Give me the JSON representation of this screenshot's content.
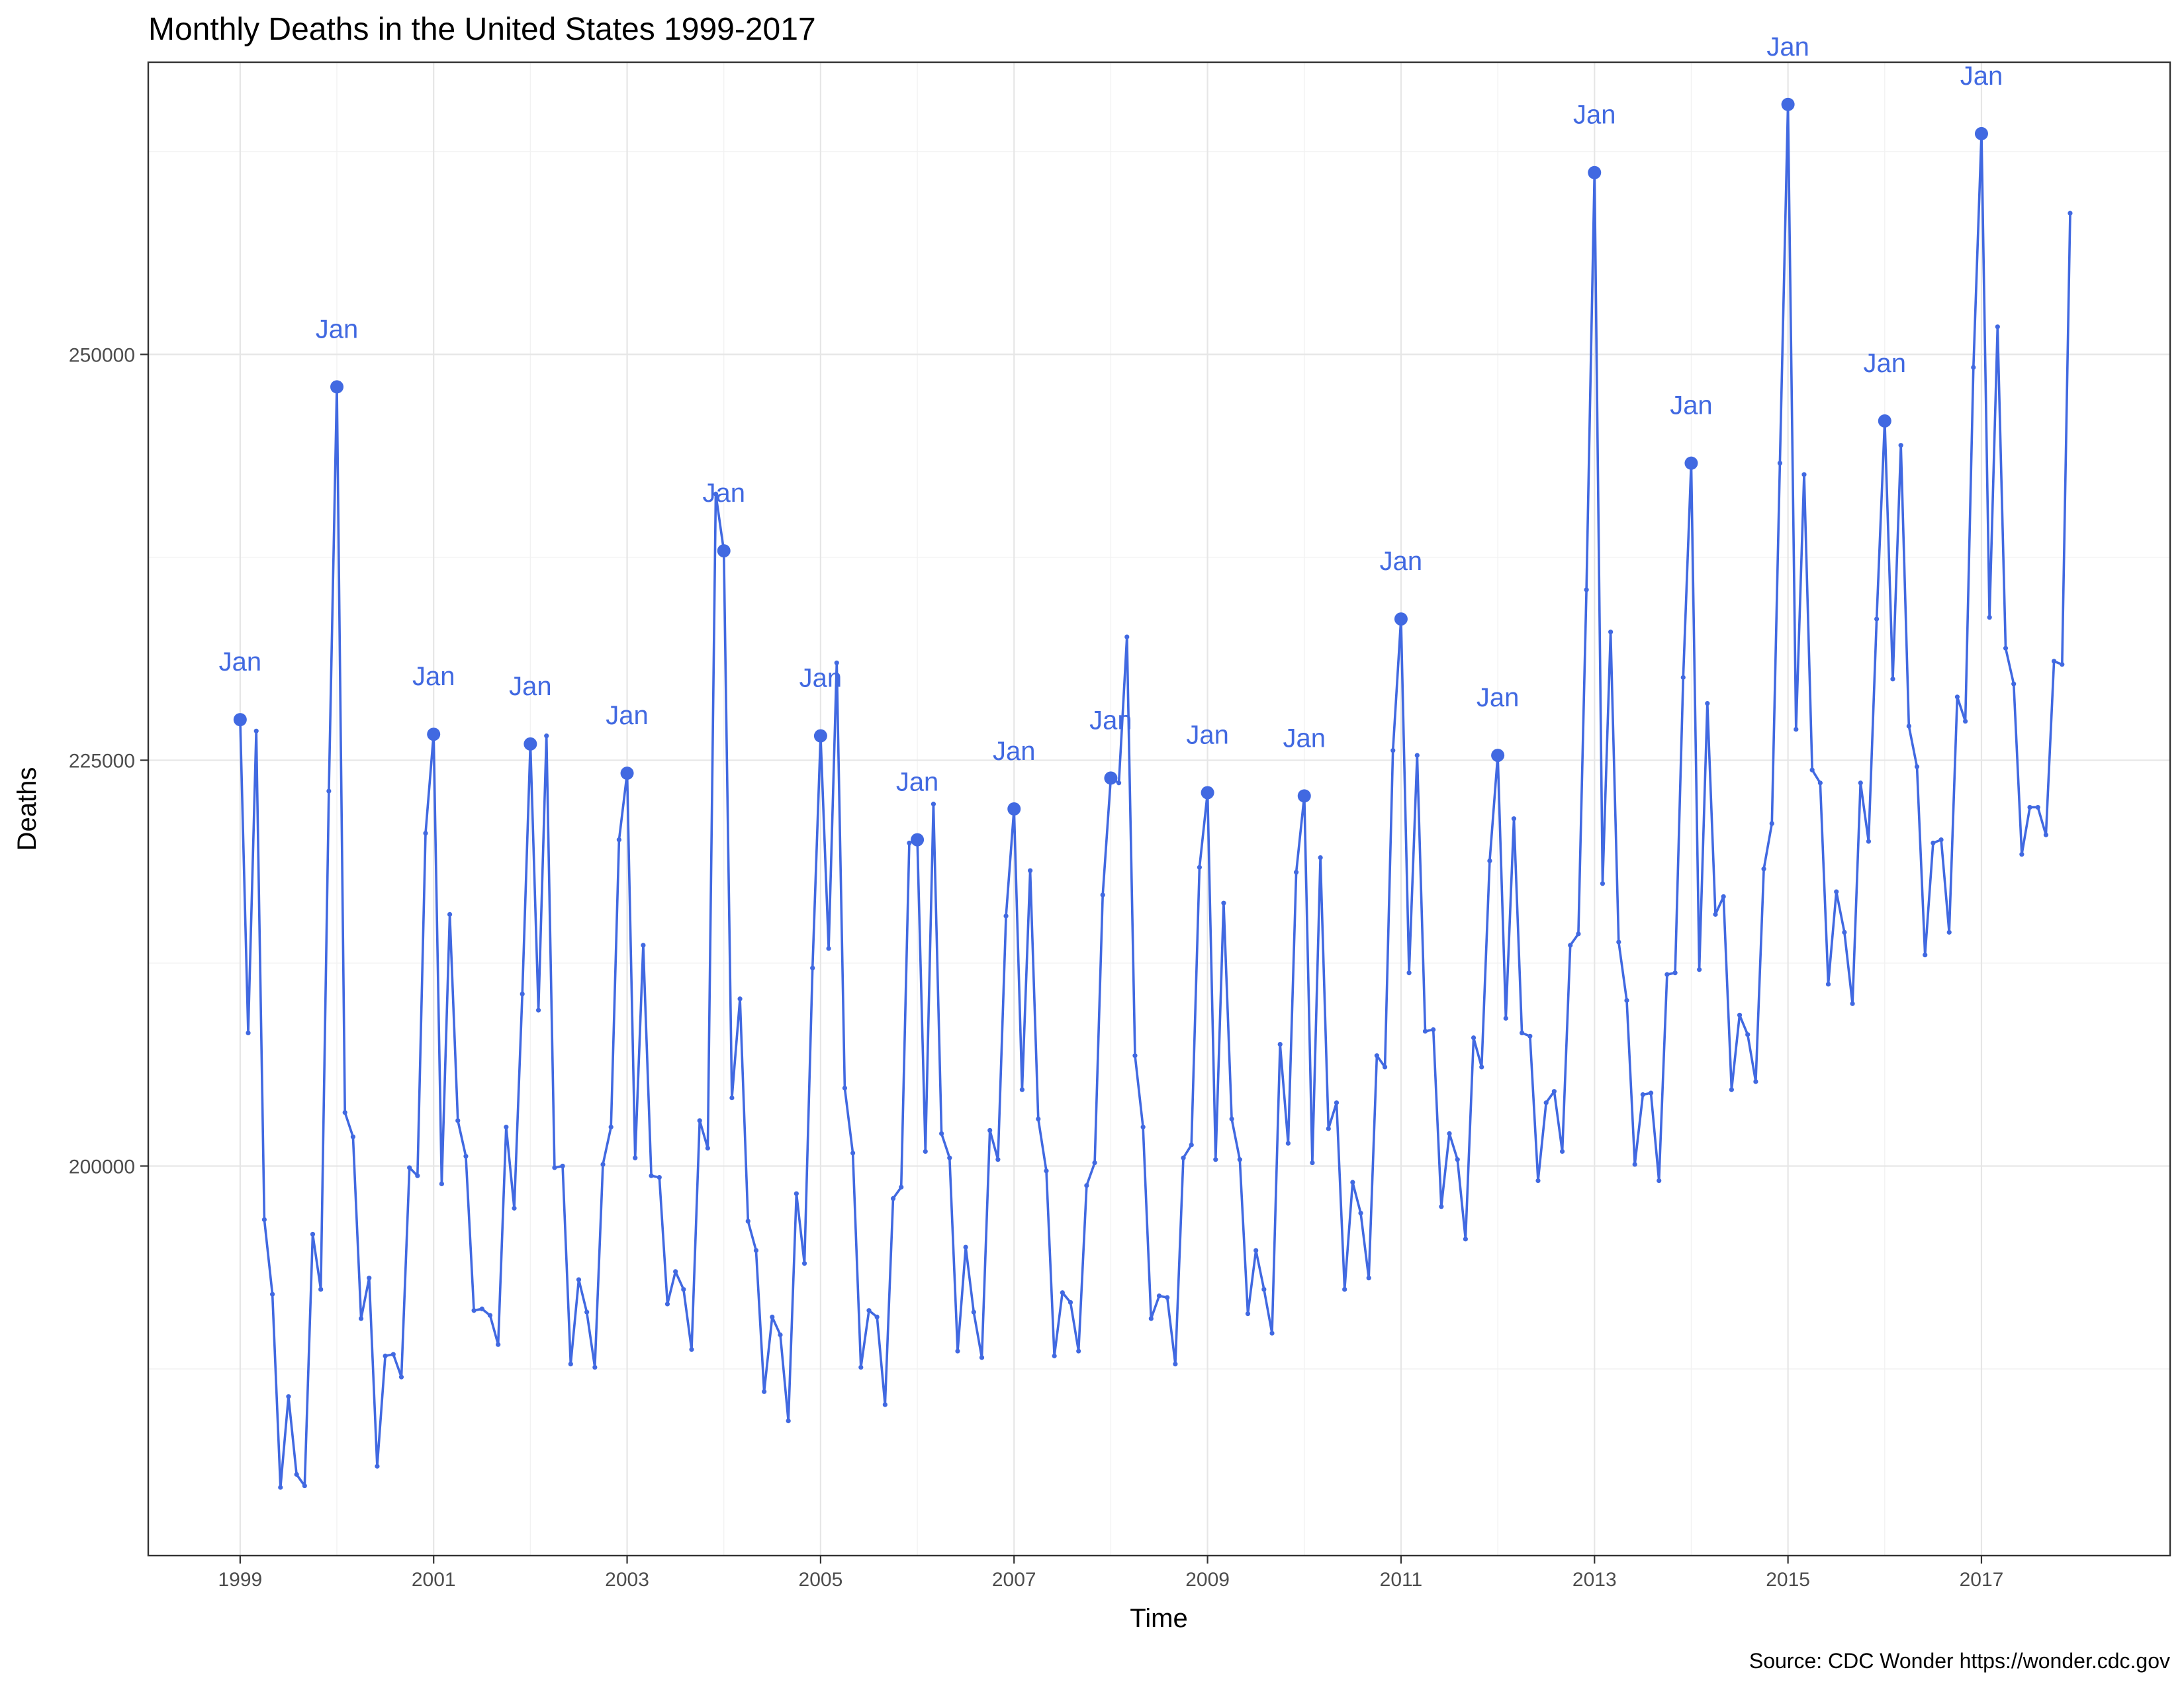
{
  "chart_data": {
    "type": "line",
    "title": "Monthly Deaths in the United States 1999-2017",
    "xlabel": "Time",
    "ylabel": "Deaths",
    "caption": "Source: CDC Wonder https://wonder.cdc.gov",
    "grid": true,
    "legend": "none",
    "xlim": [
      1998.05,
      2018.95
    ],
    "ylim": [
      176000,
      268000
    ],
    "x_ticks": [
      1999,
      2001,
      2003,
      2005,
      2007,
      2009,
      2011,
      2013,
      2015,
      2017
    ],
    "x_tick_labels": [
      "1999",
      "2001",
      "2003",
      "2005",
      "2007",
      "2009",
      "2011",
      "2013",
      "2015",
      "2017"
    ],
    "y_ticks": [
      200000,
      225000,
      250000
    ],
    "y_tick_labels": [
      "200000",
      "225000",
      "250000"
    ],
    "start_year": 1999,
    "highlight_label": "Jan",
    "colors": {
      "series": "#4169e1",
      "grid": "#e6e6e6",
      "border": "#333333"
    },
    "series": [
      {
        "values": [
          227500,
          208200,
          226800,
          196700,
          192100,
          180200,
          185800,
          181000,
          180300,
          195800,
          192400,
          223100,
          248000,
          203300,
          201800,
          190600,
          193100,
          181500,
          188300,
          188400,
          187000,
          199900,
          199400,
          220500,
          226600,
          198900,
          215500,
          202800,
          200600,
          191100,
          191200,
          190800,
          189000,
          202400,
          197400,
          210600,
          226000,
          209600,
          226500,
          199900,
          200000,
          187800,
          193000,
          191000,
          187600,
          200100,
          202400,
          220100,
          224200,
          200500,
          213600,
          199400,
          199300,
          191500,
          193500,
          192400,
          188700,
          202800,
          201100,
          241400,
          237900,
          204200,
          210300,
          196600,
          194800,
          186100,
          190700,
          189600,
          184300,
          198300,
          194000,
          212200,
          226500,
          213400,
          231000,
          204800,
          200800,
          187600,
          191100,
          190700,
          185300,
          198000,
          198700,
          219900,
          220100,
          200900,
          222300,
          202000,
          200500,
          188600,
          195000,
          191000,
          188200,
          202200,
          200400,
          215400,
          222000,
          204700,
          218200,
          202900,
          199700,
          188300,
          192200,
          191600,
          188600,
          198800,
          200200,
          216700,
          223900,
          223600,
          232600,
          206800,
          202400,
          190600,
          192000,
          191900,
          187800,
          200500,
          201300,
          218400,
          223000,
          200400,
          216200,
          202900,
          200400,
          190900,
          194800,
          192400,
          189700,
          207500,
          201400,
          218100,
          222800,
          200200,
          219000,
          202300,
          203900,
          192400,
          199000,
          197100,
          193100,
          206800,
          206100,
          225600,
          233700,
          211900,
          225300,
          208300,
          208400,
          197500,
          202000,
          200400,
          195500,
          207900,
          206100,
          218800,
          225300,
          209100,
          221400,
          208200,
          208000,
          199100,
          203900,
          204600,
          200900,
          213600,
          214300,
          235500,
          261200,
          217400,
          232900,
          213800,
          210200,
          200100,
          204400,
          204500,
          199100,
          211800,
          211900,
          230100,
          243300,
          212100,
          228500,
          215500,
          216600,
          204700,
          209300,
          208100,
          205200,
          218300,
          221100,
          243300,
          265400,
          226900,
          242600,
          224400,
          223600,
          211200,
          216900,
          214400,
          210000,
          223600,
          220000,
          233700,
          245900,
          230000,
          244400,
          227100,
          224600,
          213000,
          219900,
          220100,
          214400,
          228900,
          227400,
          249200,
          263600,
          233800,
          251700,
          231900,
          229700,
          219200,
          222100,
          222100,
          220400,
          231100,
          230900,
          258700
        ]
      }
    ]
  }
}
